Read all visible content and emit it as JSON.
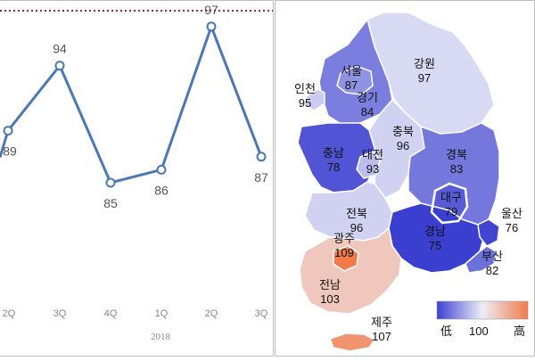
{
  "chart_data": [
    {
      "type": "line",
      "x": [
        "2Q",
        "3Q",
        "4Q",
        "1Q",
        "2Q",
        "3Q"
      ],
      "values": [
        89,
        94,
        85,
        86,
        97,
        87
      ],
      "year_label": "2018",
      "series_color": "#4a78b5",
      "reference_line_color": "#b01f24"
    },
    {
      "type": "heatmap",
      "regions": [
        {
          "name": "서울",
          "value": 87
        },
        {
          "name": "인천",
          "value": 95
        },
        {
          "name": "경기",
          "value": 84
        },
        {
          "name": "강원",
          "value": 97
        },
        {
          "name": "충북",
          "value": 96
        },
        {
          "name": "충남",
          "value": 78
        },
        {
          "name": "대전",
          "value": 93
        },
        {
          "name": "경북",
          "value": 83
        },
        {
          "name": "대구",
          "value": 79
        },
        {
          "name": "전북",
          "value": 96
        },
        {
          "name": "광주",
          "value": 109
        },
        {
          "name": "울산",
          "value": 76
        },
        {
          "name": "경남",
          "value": 75
        },
        {
          "name": "부산",
          "value": 82
        },
        {
          "name": "전남",
          "value": 103
        },
        {
          "name": "제주",
          "value": 107
        }
      ],
      "legend": {
        "low": "低",
        "mid": "100",
        "high": "高"
      },
      "colors": {
        "low": "#3a3fd0",
        "mid": "#eeeef7",
        "high": "#f07a4a"
      }
    }
  ]
}
